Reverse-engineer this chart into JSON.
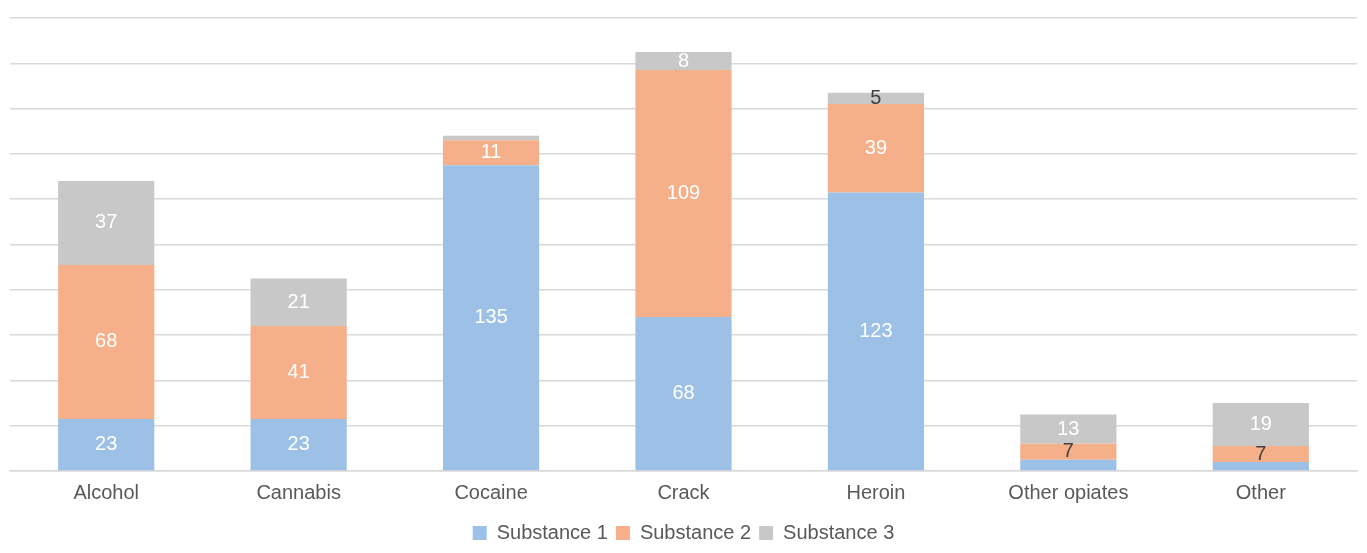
{
  "chart_data": {
    "type": "bar",
    "stacked": true,
    "categories": [
      "Alcohol",
      "Cannabis",
      "Cocaine",
      "Crack",
      "Heroin",
      "Other opiates",
      "Other"
    ],
    "series": [
      {
        "name": "Substance 1",
        "color": "#9dc0e6",
        "values": [
          23,
          23,
          135,
          68,
          123,
          5,
          4
        ],
        "value_labels": [
          "23",
          "23",
          "135",
          "68",
          "123",
          null,
          null
        ]
      },
      {
        "name": "Substance 2",
        "color": "#f5b08a",
        "values": [
          68,
          41,
          11,
          109,
          39,
          7,
          7
        ],
        "value_labels": [
          "68",
          "41",
          "11",
          "109",
          "39",
          "7",
          "7"
        ]
      },
      {
        "name": "Substance 3",
        "color": "#c8c8c8",
        "values": [
          37,
          21,
          2,
          8,
          5,
          13,
          19
        ],
        "value_labels": [
          "37",
          "21",
          null,
          "8",
          "5",
          "13",
          "19"
        ]
      }
    ],
    "ylim": [
      0,
      200
    ],
    "yticks": [
      {
        "value": 0,
        "label": null
      },
      {
        "value": 20,
        "label": null
      },
      {
        "value": 40,
        "label": null
      },
      {
        "value": 60,
        "label": null
      },
      {
        "value": 80,
        "label": null
      },
      {
        "value": 100,
        "label": null
      },
      {
        "value": 120,
        "label": null
      },
      {
        "value": 140,
        "label": null
      },
      {
        "value": 160,
        "label": null
      },
      {
        "value": 180,
        "label": null
      },
      {
        "value": 200,
        "label": null
      }
    ],
    "tick_labels": "x",
    "grid": "y",
    "legend": "bottom"
  }
}
